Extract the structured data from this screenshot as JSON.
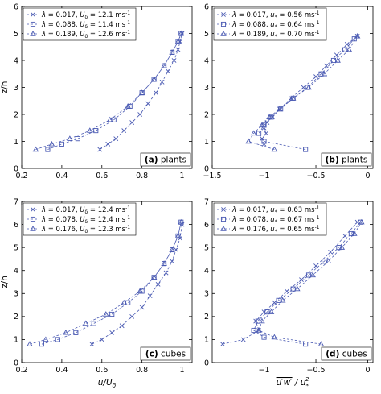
{
  "chart_data": [
    {
      "id": "a",
      "type": "line",
      "xlabel": "",
      "ylabel": "z/h",
      "xlim": [
        0.2,
        1.05
      ],
      "ylim": [
        0,
        6
      ],
      "xticks": [
        0.2,
        0.4,
        0.6,
        0.8,
        1
      ],
      "xticklabels": [
        "0.2",
        "0.4",
        "0.6",
        "0.8",
        "1"
      ],
      "yticks": [
        0,
        1,
        2,
        3,
        4,
        5,
        6
      ],
      "grid": false,
      "legend": {
        "position": "top-left",
        "entries": [
          {
            "lambda": "0.017",
            "vel_sym": "U",
            "vel_sub": "δ",
            "vel": "12.1 ms",
            "exp": "-1"
          },
          {
            "lambda": "0.088",
            "vel_sym": "U",
            "vel_sub": "δ",
            "vel": "11.4 ms",
            "exp": "-1"
          },
          {
            "lambda": "0.189",
            "vel_sym": "U",
            "vel_sub": "δ",
            "vel": "12.6 ms",
            "exp": "-1"
          }
        ]
      },
      "annotation": {
        "letter": "(a)",
        "text": " plants",
        "position": "bottom-right"
      },
      "series": [
        {
          "marker": "x",
          "x": [
            0.59,
            0.63,
            0.67,
            0.71,
            0.75,
            0.79,
            0.83,
            0.87,
            0.9,
            0.93,
            0.96,
            0.98,
            0.99,
            1.0
          ],
          "y": [
            0.7,
            0.9,
            1.1,
            1.4,
            1.7,
            2.0,
            2.4,
            2.8,
            3.2,
            3.6,
            4.0,
            4.4,
            4.7,
            5.0
          ]
        },
        {
          "marker": "square",
          "x": [
            0.33,
            0.4,
            0.48,
            0.57,
            0.66,
            0.74,
            0.8,
            0.86,
            0.91,
            0.95,
            0.98,
            0.995
          ],
          "y": [
            0.7,
            0.9,
            1.1,
            1.4,
            1.8,
            2.3,
            2.8,
            3.3,
            3.8,
            4.3,
            4.7,
            5.0
          ]
        },
        {
          "marker": "triangle",
          "x": [
            0.27,
            0.35,
            0.44,
            0.54,
            0.64,
            0.73,
            0.8,
            0.86,
            0.91,
            0.95,
            0.98,
            0.995
          ],
          "y": [
            0.7,
            0.9,
            1.1,
            1.4,
            1.8,
            2.3,
            2.8,
            3.3,
            3.8,
            4.3,
            4.7,
            5.0
          ]
        }
      ]
    },
    {
      "id": "b",
      "type": "line",
      "xlabel": "",
      "ylabel": "",
      "xlim": [
        -1.5,
        0.05
      ],
      "ylim": [
        0,
        6
      ],
      "xticks": [
        -1.5,
        -1,
        -0.5,
        0
      ],
      "xticklabels": [
        "−1.5",
        "−1",
        "−0.5",
        "0"
      ],
      "yticks": [
        0,
        1,
        2,
        3,
        4,
        5,
        6
      ],
      "grid": false,
      "legend": {
        "position": "top-left",
        "entries": [
          {
            "lambda": "0.017",
            "vel_sym": "u",
            "vel_sub": "*",
            "vel": "0.56 ms",
            "exp": "-1"
          },
          {
            "lambda": "0.088",
            "vel_sym": "u",
            "vel_sub": "*",
            "vel": "0.64 ms",
            "exp": "-1"
          },
          {
            "lambda": "0.189",
            "vel_sym": "u",
            "vel_sub": "*",
            "vel": "0.70 ms",
            "exp": "-1"
          }
        ]
      },
      "annotation": {
        "letter": "(b)",
        "text": " plants",
        "position": "bottom-right"
      },
      "series": [
        {
          "marker": "x",
          "x": [
            -1.0,
            -1.02,
            -0.98,
            -1.0,
            -0.97,
            -0.92,
            -0.85,
            -0.74,
            -0.62,
            -0.5,
            -0.4,
            -0.3,
            -0.2,
            -0.1
          ],
          "y": [
            0.9,
            1.1,
            1.3,
            1.5,
            1.7,
            1.9,
            2.2,
            2.6,
            3.0,
            3.4,
            3.8,
            4.2,
            4.6,
            4.9
          ]
        },
        {
          "marker": "square",
          "x": [
            -0.6,
            -1.0,
            -1.05,
            -1.0,
            -0.93,
            -0.84,
            -0.72,
            -0.58,
            -0.45,
            -0.33,
            -0.22,
            -0.13
          ],
          "y": [
            0.7,
            1.0,
            1.3,
            1.6,
            1.9,
            2.2,
            2.6,
            3.0,
            3.5,
            4.0,
            4.4,
            4.8
          ]
        },
        {
          "marker": "triangle",
          "x": [
            -0.9,
            -1.15,
            -1.1,
            -1.02,
            -0.95,
            -0.85,
            -0.72,
            -0.57,
            -0.42,
            -0.29,
            -0.18,
            -0.1
          ],
          "y": [
            0.7,
            1.0,
            1.3,
            1.6,
            1.9,
            2.2,
            2.6,
            3.0,
            3.5,
            4.0,
            4.4,
            4.9
          ]
        }
      ]
    },
    {
      "id": "c",
      "type": "line",
      "xlabel_main": "u/U",
      "xlabel_sub": "δ",
      "ylabel": "z/h",
      "xlim": [
        0.2,
        1.05
      ],
      "ylim": [
        0,
        7
      ],
      "xticks": [
        0.2,
        0.4,
        0.6,
        0.8,
        1
      ],
      "xticklabels": [
        "0.2",
        "0.4",
        "0.6",
        "0.8",
        "1"
      ],
      "yticks": [
        0,
        1,
        2,
        3,
        4,
        5,
        6,
        7
      ],
      "grid": false,
      "legend": {
        "position": "top-left",
        "entries": [
          {
            "lambda": "0.017",
            "vel_sym": "U",
            "vel_sub": "δ",
            "vel": "12.4 ms",
            "exp": "-1"
          },
          {
            "lambda": "0.078",
            "vel_sym": "U",
            "vel_sub": "δ",
            "vel": "12.4 ms",
            "exp": "-1"
          },
          {
            "lambda": "0.176",
            "vel_sym": "U",
            "vel_sub": "δ",
            "vel": "12.3 ms",
            "exp": "-1"
          }
        ]
      },
      "annotation": {
        "letter": "(c)",
        "text": " cubes",
        "position": "bottom-right"
      },
      "series": [
        {
          "marker": "x",
          "x": [
            0.55,
            0.6,
            0.65,
            0.7,
            0.75,
            0.8,
            0.84,
            0.88,
            0.92,
            0.95,
            0.97,
            0.99,
            1.0
          ],
          "y": [
            0.8,
            1.0,
            1.3,
            1.6,
            2.0,
            2.4,
            2.9,
            3.4,
            3.9,
            4.4,
            4.9,
            5.4,
            6.0
          ]
        },
        {
          "marker": "square",
          "x": [
            0.3,
            0.38,
            0.47,
            0.56,
            0.65,
            0.73,
            0.8,
            0.86,
            0.91,
            0.95,
            0.98,
            0.995
          ],
          "y": [
            0.8,
            1.0,
            1.3,
            1.7,
            2.1,
            2.6,
            3.1,
            3.7,
            4.3,
            4.9,
            5.5,
            6.1
          ]
        },
        {
          "marker": "triangle",
          "x": [
            0.24,
            0.32,
            0.42,
            0.52,
            0.62,
            0.71,
            0.79,
            0.86,
            0.91,
            0.95,
            0.98,
            0.995
          ],
          "y": [
            0.8,
            1.0,
            1.3,
            1.7,
            2.1,
            2.6,
            3.1,
            3.7,
            4.3,
            4.9,
            5.5,
            6.1
          ]
        }
      ]
    },
    {
      "id": "d",
      "type": "line",
      "xlabel_main": "u′w′",
      "xlabel_rest": " / u",
      "xlabel_sub": "*",
      "xlabel_sup": "2",
      "ylabel": "",
      "xlim": [
        -1.5,
        0.05
      ],
      "ylim": [
        0,
        7
      ],
      "xticks": [
        -1,
        -0.5,
        0
      ],
      "xticklabels": [
        "−1",
        "−0.5",
        "0"
      ],
      "yticks": [
        0,
        1,
        2,
        3,
        4,
        5,
        6,
        7
      ],
      "grid": false,
      "legend": {
        "position": "top-left",
        "entries": [
          {
            "lambda": "0.017",
            "vel_sym": "u",
            "vel_sub": "*",
            "vel": "0.63 ms",
            "exp": "-1"
          },
          {
            "lambda": "0.078",
            "vel_sym": "u",
            "vel_sub": "*",
            "vel": "0.67 ms",
            "exp": "-1"
          },
          {
            "lambda": "0.176",
            "vel_sym": "u",
            "vel_sub": "*",
            "vel": "0.65 ms",
            "exp": "-1"
          }
        ]
      },
      "annotation": {
        "letter": "(d)",
        "text": " cubes",
        "position": "bottom-right"
      },
      "series": [
        {
          "marker": "x",
          "x": [
            -1.4,
            -1.2,
            -1.05,
            -1.08,
            -1.0,
            -0.9,
            -0.78,
            -0.64,
            -0.5,
            -0.36,
            -0.22,
            -0.1
          ],
          "y": [
            0.8,
            1.0,
            1.4,
            1.8,
            2.2,
            2.6,
            3.1,
            3.6,
            4.2,
            4.8,
            5.5,
            6.1
          ]
        },
        {
          "marker": "square",
          "x": [
            -0.6,
            -1.0,
            -1.1,
            -1.06,
            -0.97,
            -0.86,
            -0.72,
            -0.57,
            -0.42,
            -0.28,
            -0.16,
            -0.07
          ],
          "y": [
            0.8,
            1.1,
            1.4,
            1.8,
            2.2,
            2.7,
            3.2,
            3.8,
            4.4,
            5.0,
            5.6,
            6.1
          ]
        },
        {
          "marker": "triangle",
          "x": [
            -0.45,
            -0.9,
            -1.05,
            -1.02,
            -0.93,
            -0.82,
            -0.68,
            -0.53,
            -0.38,
            -0.25,
            -0.13,
            -0.06
          ],
          "y": [
            0.8,
            1.1,
            1.4,
            1.8,
            2.2,
            2.7,
            3.2,
            3.8,
            4.4,
            5.0,
            5.6,
            6.1
          ]
        }
      ]
    }
  ],
  "colors": {
    "series": "#4b5bb3",
    "axis": "#000000",
    "background": "#ffffff"
  }
}
